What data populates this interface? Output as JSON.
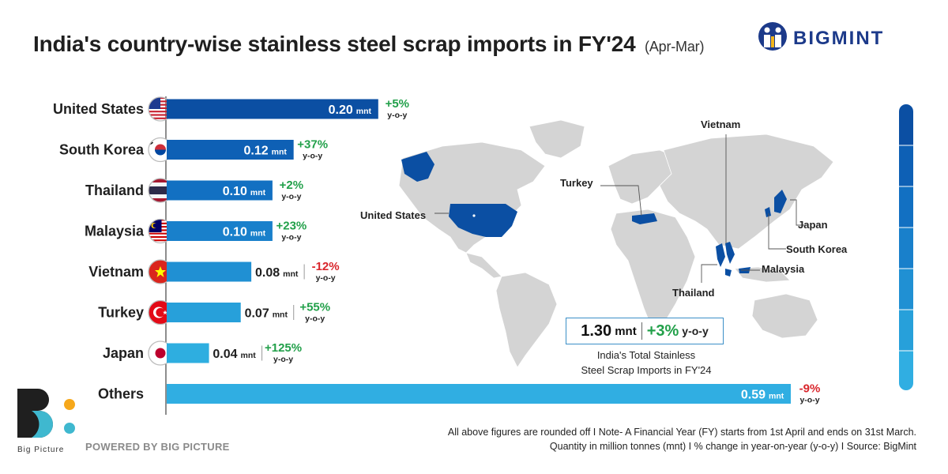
{
  "title": "India's country-wise stainless steel scrap imports in FY'24",
  "title_sub": "(Apr-Mar)",
  "brand": "BIGMINT",
  "chart_data": {
    "type": "bar",
    "orientation": "horizontal",
    "title": "India's country-wise stainless steel scrap imports in FY'24",
    "unit": "mnt",
    "categories": [
      "United States",
      "South Korea",
      "Thailand",
      "Malaysia",
      "Vietnam",
      "Turkey",
      "Japan",
      "Others"
    ],
    "values": [
      0.2,
      0.12,
      0.1,
      0.1,
      0.08,
      0.07,
      0.04,
      0.59
    ],
    "value_labels": [
      "0.20",
      "0.12",
      "0.10",
      "0.10",
      "0.08",
      "0.07",
      "0.04",
      "0.59"
    ],
    "yoy_labels": [
      "+5%",
      "+37%",
      "+2%",
      "+23%",
      "-12%",
      "+55%",
      "+125%",
      "-9%"
    ],
    "yoy_suffix": "y-o-y",
    "colors": [
      "#0b4fa3",
      "#0e60b5",
      "#1270c2",
      "#1980cb",
      "#2090d3",
      "#27a0da",
      "#2eaee0",
      "#30aee2"
    ],
    "positive_color": "#22a04a",
    "negative_color": "#d9262c"
  },
  "map": {
    "labels": {
      "vietnam": "Vietnam",
      "turkey": "Turkey",
      "united_states": "United States",
      "japan": "Japan",
      "south_korea": "South Korea",
      "malaysia": "Malaysia",
      "thailand": "Thailand"
    },
    "land_color": "#d4d4d4",
    "highlight_color": "#0b4fa3"
  },
  "total": {
    "value": "1.30",
    "unit": "mnt",
    "change": "+3%",
    "yoy": "y-o-y",
    "caption_line1": "India's Total Stainless",
    "caption_line2": "Steel Scrap Imports in FY'24"
  },
  "footer": {
    "line1": "All above figures are rounded off  I  Note- A Financial Year (FY) starts from 1st April and ends on 31st March.",
    "line2": "Quantity in million tonnes (mnt)  I  % change in year-on-year (y-o-y)  I  Source: BigMint"
  },
  "bigpicture": {
    "label": "Big Picture",
    "powered": "POWERED BY BIG PICTURE"
  }
}
